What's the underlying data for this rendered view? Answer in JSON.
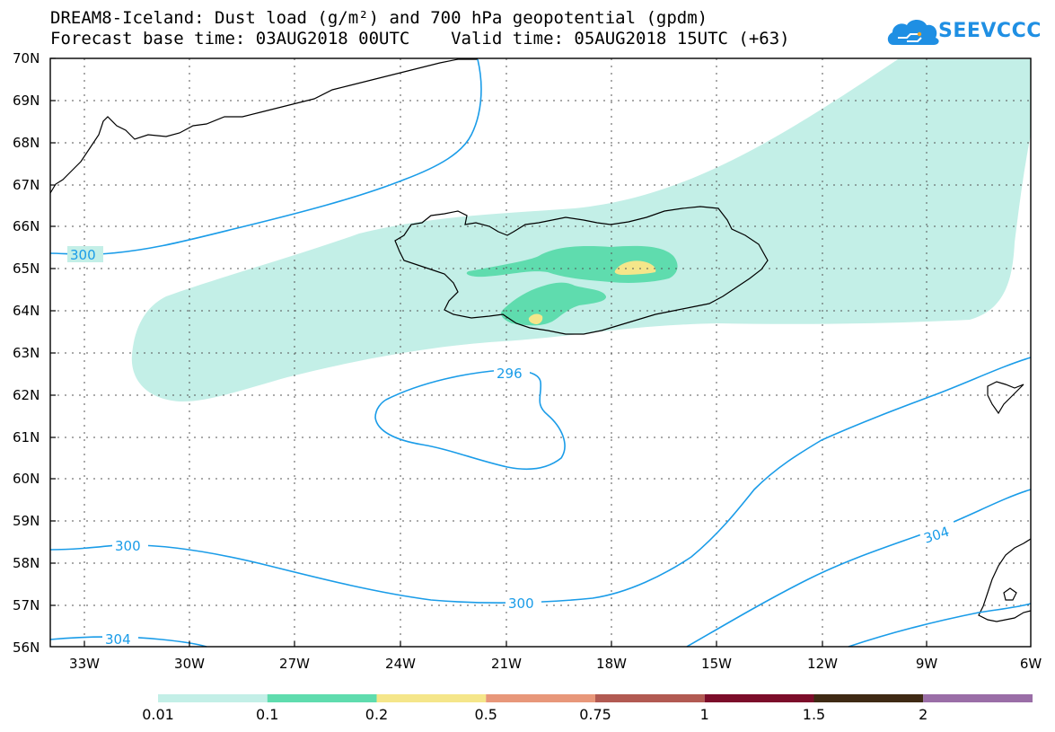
{
  "header": {
    "title_line1": "DREAM8-Iceland: Dust load (g/m²) and 700 hPa geopotential (gpdm)",
    "title_line2": "Forecast base time: 03AUG2018 00UTC    Valid time: 05AUG2018 15UTC (+63)"
  },
  "brand": {
    "name": "SEEVCCC",
    "logo_icon": "cloud-logo-icon",
    "color": "#1f8fe3"
  },
  "map": {
    "lat_labels": [
      "70N",
      "69N",
      "68N",
      "67N",
      "66N",
      "65N",
      "64N",
      "63N",
      "62N",
      "61N",
      "60N",
      "59N",
      "58N",
      "57N",
      "56N"
    ],
    "lon_labels": [
      "33W",
      "30W",
      "27W",
      "24W",
      "21W",
      "18W",
      "15W",
      "12W",
      "9W",
      "6W"
    ],
    "contour_labels": [
      "300",
      "296",
      "300",
      "304",
      "304"
    ],
    "contour_color": "#1a9ce8"
  },
  "legend": {
    "values": [
      "0.01",
      "0.1",
      "0.2",
      "0.5",
      "0.75",
      "1",
      "1.5",
      "2"
    ],
    "colors": [
      "#c3efe7",
      "#5fdcae",
      "#f5e68a",
      "#e8977a",
      "#b25a52",
      "#7c0d2a",
      "#3f2a14",
      "#9a6ea7"
    ]
  }
}
